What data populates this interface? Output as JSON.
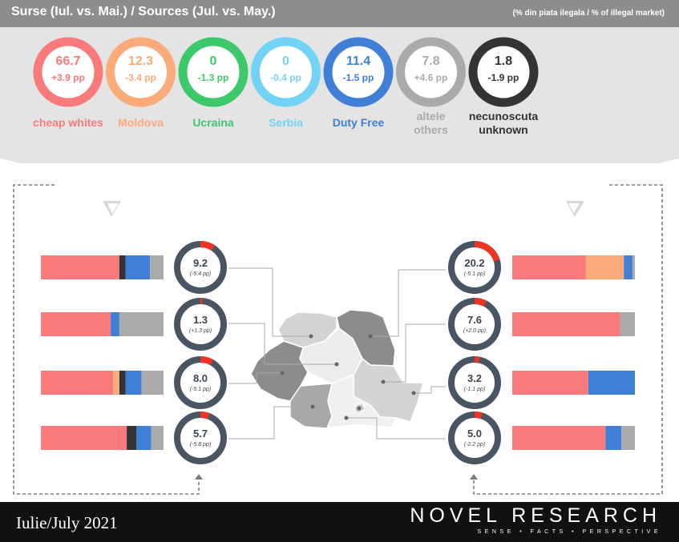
{
  "header": {
    "title": "Surse (Iul. vs. Mai.) / Sources (Jul. vs. May.)",
    "note": "(% din piata ilegala / % of illegal market)"
  },
  "chart_data": [
    {
      "type": "donut-summary",
      "title": "Surse (Iul. vs. Mai.) / Sources (Jul. vs. May.)",
      "sources": [
        {
          "label": "cheap whites",
          "label2": "",
          "value": "66.7",
          "change": "+3.9 pp",
          "color": "#f87a7a",
          "textcolor": "#f87a7a",
          "labelcolor": "#f87a7a"
        },
        {
          "label": "Moldova",
          "label2": "",
          "value": "12.3",
          "change": "-3.4 pp",
          "color": "#fbaa7a",
          "textcolor": "#fbaa7a",
          "labelcolor": "#fbaa7a"
        },
        {
          "label": "Ucraina",
          "label2": "",
          "value": "0",
          "change": "-1.3 pp",
          "color": "#3dc86b",
          "textcolor": "#3dc86b",
          "labelcolor": "#3dc86b"
        },
        {
          "label": "Serbia",
          "label2": "",
          "value": "0",
          "change": "-0.4 pp",
          "color": "#72d3f7",
          "textcolor": "#72d3f7",
          "labelcolor": "#72d3f7"
        },
        {
          "label": "Duty Free",
          "label2": "",
          "value": "11.4",
          "change": "-1.5 pp",
          "color": "#3f7fd6",
          "textcolor": "#3f7fd6",
          "labelcolor": "#3f7fd6"
        },
        {
          "label": "altele",
          "label2": "others",
          "value": "7.8",
          "change": "+4.6 pp",
          "color": "#aaaaaa",
          "textcolor": "#aaaaaa",
          "labelcolor": "#aaaaaa"
        },
        {
          "label": "necunoscuta",
          "label2": "unknown",
          "value": "1.8",
          "change": "-1.9 pp",
          "color": "#333333",
          "textcolor": "#333333",
          "labelcolor": "#333333"
        }
      ]
    },
    {
      "type": "bar",
      "stacked": true,
      "series_colors": {
        "cheap whites": "#f87a7a",
        "Moldova": "#fbaa7a",
        "necunoscuta": "#333333",
        "Duty Free": "#3f7fd6",
        "altele": "#aaaaaa"
      },
      "regions": [
        {
          "side": "left",
          "value": "9.2",
          "change": "(-5.4 pp)",
          "share": 9.2,
          "segments": [
            {
              "color": "#f87a7a",
              "value": 64
            },
            {
              "color": "#333333",
              "value": 5
            },
            {
              "color": "#3f7fd6",
              "value": 20
            },
            {
              "color": "#aaaaaa",
              "value": 11
            }
          ]
        },
        {
          "side": "left",
          "value": "1.3",
          "change": "(+1.3 pp)",
          "share": 1.3,
          "segments": [
            {
              "color": "#f87a7a",
              "value": 57
            },
            {
              "color": "#3f7fd6",
              "value": 7
            },
            {
              "color": "#aaaaaa",
              "value": 36
            }
          ]
        },
        {
          "side": "left",
          "value": "8.0",
          "change": "(-5.1 pp)",
          "share": 8.0,
          "segments": [
            {
              "color": "#f87a7a",
              "value": 59
            },
            {
              "color": "#fbaa7a",
              "value": 5
            },
            {
              "color": "#333333",
              "value": 5
            },
            {
              "color": "#3f7fd6",
              "value": 13
            },
            {
              "color": "#aaaaaa",
              "value": 18
            }
          ]
        },
        {
          "side": "left",
          "value": "5.7",
          "change": "(-5.8 pp)",
          "share": 5.7,
          "segments": [
            {
              "color": "#f87a7a",
              "value": 70
            },
            {
              "color": "#333333",
              "value": 8
            },
            {
              "color": "#3f7fd6",
              "value": 12
            },
            {
              "color": "#aaaaaa",
              "value": 10
            }
          ]
        },
        {
          "side": "right",
          "value": "20.2",
          "change": "(-5.1 pp)",
          "share": 20.2,
          "segments": [
            {
              "color": "#f87a7a",
              "value": 60
            },
            {
              "color": "#fbaa7a",
              "value": 31
            },
            {
              "color": "#3f7fd6",
              "value": 7
            },
            {
              "color": "#aaaaaa",
              "value": 2
            }
          ]
        },
        {
          "side": "right",
          "value": "7.6",
          "change": "(+2.0 pp)",
          "share": 7.6,
          "segments": [
            {
              "color": "#f87a7a",
              "value": 88
            },
            {
              "color": "#aaaaaa",
              "value": 12
            }
          ]
        },
        {
          "side": "right",
          "value": "3.2",
          "change": "(-1.1 pp)",
          "share": 3.2,
          "segments": [
            {
              "color": "#f87a7a",
              "value": 62
            },
            {
              "color": "#3f7fd6",
              "value": 38
            }
          ]
        },
        {
          "side": "right",
          "value": "5.0",
          "change": "(-2.2 pp)",
          "share": 5.0,
          "segments": [
            {
              "color": "#f87a7a",
              "value": 76
            },
            {
              "color": "#3f7fd6",
              "value": 13
            },
            {
              "color": "#aaaaaa",
              "value": 11
            }
          ]
        }
      ]
    }
  ],
  "footer": {
    "date": "Iulie/July 2021",
    "brand": "NOVEL RESEARCH",
    "tagline": "SENSE • FACTS • PERSPECTIVE"
  }
}
